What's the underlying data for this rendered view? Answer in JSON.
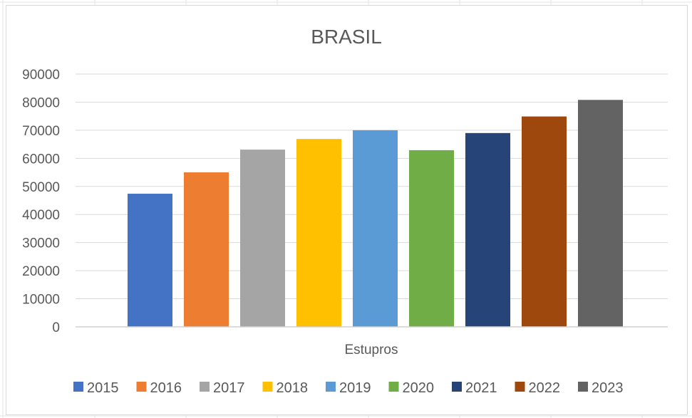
{
  "chart_data": {
    "type": "bar",
    "title": "BRASIL",
    "xlabel": "Estupros",
    "ylabel": "",
    "ylim": [
      0,
      90000
    ],
    "yticks": [
      0,
      10000,
      20000,
      30000,
      40000,
      50000,
      60000,
      70000,
      80000,
      90000
    ],
    "grid": true,
    "legend_position": "bottom",
    "categories": [
      "Estupros"
    ],
    "series": [
      {
        "name": "2015",
        "values": [
          47400
        ],
        "color": "#4472C4"
      },
      {
        "name": "2016",
        "values": [
          55000
        ],
        "color": "#ED7D31"
      },
      {
        "name": "2017",
        "values": [
          63100
        ],
        "color": "#A5A5A5"
      },
      {
        "name": "2018",
        "values": [
          66900
        ],
        "color": "#FFC000"
      },
      {
        "name": "2019",
        "values": [
          70000
        ],
        "color": "#5B9BD5"
      },
      {
        "name": "2020",
        "values": [
          62900
        ],
        "color": "#70AD47"
      },
      {
        "name": "2021",
        "values": [
          69000
        ],
        "color": "#264478"
      },
      {
        "name": "2022",
        "values": [
          74900
        ],
        "color": "#9E480E"
      },
      {
        "name": "2023",
        "values": [
          80800
        ],
        "color": "#636363"
      }
    ]
  }
}
